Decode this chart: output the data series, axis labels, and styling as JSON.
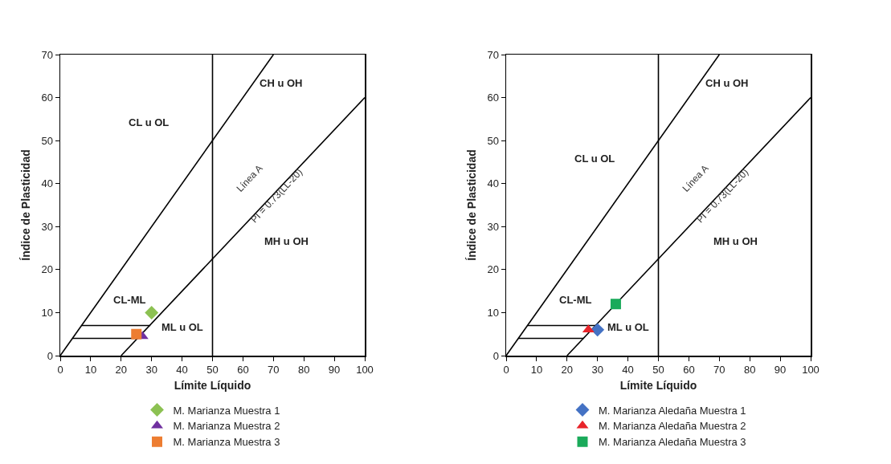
{
  "chart_data": [
    {
      "type": "scatter",
      "xlabel": "Límite Líquido",
      "ylabel": "Índice de Plasticidad",
      "xlim": [
        0,
        100
      ],
      "ylim": [
        0,
        70
      ],
      "xticks": [
        0,
        10,
        20,
        30,
        40,
        50,
        60,
        70,
        80,
        90,
        100
      ],
      "yticks": [
        0,
        10,
        20,
        30,
        40,
        50,
        60,
        70
      ],
      "grid": false,
      "legend": "bottom",
      "ref_lines": [
        {
          "axis": "x",
          "value": 50,
          "color": "#000000"
        }
      ],
      "annotations": [
        "CL u OL",
        "CH u OH",
        "MH u OH",
        "CL-ML",
        "ML u OL",
        "Línea A",
        "PI = 0.73(LL-20)"
      ],
      "series": [
        {
          "type": "line",
          "color": "#000000",
          "marker": "none",
          "x": [
            0,
            70
          ],
          "values": [
            0,
            70
          ]
        },
        {
          "type": "line",
          "color": "#000000",
          "marker": "none",
          "x": [
            20,
            100
          ],
          "values": [
            0,
            60
          ]
        },
        {
          "type": "line",
          "color": "#000000",
          "marker": "none",
          "x": [
            7,
            29.6
          ],
          "values": [
            7,
            7
          ]
        },
        {
          "type": "line",
          "color": "#000000",
          "marker": "none",
          "x": [
            4,
            25.5
          ],
          "values": [
            4,
            4
          ]
        },
        {
          "name": "M. Marianza Muestra 1",
          "color": "#8cc152",
          "marker": "diamond",
          "x": [
            30
          ],
          "values": [
            10
          ]
        },
        {
          "name": "M. Marianza Muestra 2",
          "color": "#7030a0",
          "marker": "triangle",
          "x": [
            27
          ],
          "values": [
            4.5
          ]
        },
        {
          "name": "M. Marianza Muestra 3",
          "color": "#ed7d31",
          "marker": "square",
          "x": [
            25
          ],
          "values": [
            5
          ]
        }
      ]
    },
    {
      "type": "scatter",
      "xlabel": "Límite Líquido",
      "ylabel": "Índice de Plasticidad",
      "xlim": [
        0,
        100
      ],
      "ylim": [
        0,
        70
      ],
      "xticks": [
        0,
        10,
        20,
        30,
        40,
        50,
        60,
        70,
        80,
        90,
        100
      ],
      "yticks": [
        0,
        10,
        20,
        30,
        40,
        50,
        60,
        70
      ],
      "grid": false,
      "legend": "bottom",
      "ref_lines": [
        {
          "axis": "x",
          "value": 50,
          "color": "#000000"
        }
      ],
      "annotations": [
        "CL u OL",
        "CH u OH",
        "MH u OH",
        "CL-ML",
        "ML u OL",
        "Línea A",
        "PI = 0.73(LL-20)"
      ],
      "series": [
        {
          "type": "line",
          "color": "#000000",
          "marker": "none",
          "x": [
            0,
            70
          ],
          "values": [
            0,
            70
          ]
        },
        {
          "type": "line",
          "color": "#000000",
          "marker": "none",
          "x": [
            20,
            100
          ],
          "values": [
            0,
            60
          ]
        },
        {
          "type": "line",
          "color": "#000000",
          "marker": "none",
          "x": [
            7,
            29.6
          ],
          "values": [
            7,
            7
          ]
        },
        {
          "type": "line",
          "color": "#000000",
          "marker": "none",
          "x": [
            4,
            25.5
          ],
          "values": [
            4,
            4
          ]
        },
        {
          "name": "M. Marianza Aledaña Muestra 1",
          "color": "#4472c4",
          "marker": "diamond",
          "x": [
            30
          ],
          "values": [
            6
          ]
        },
        {
          "name": "M. Marianza Aledaña Muestra 2",
          "color": "#e8242a",
          "marker": "triangle",
          "x": [
            27
          ],
          "values": [
            6
          ]
        },
        {
          "name": "M. Marianza Aledaña Muestra 3",
          "color": "#1aaa5a",
          "marker": "square",
          "x": [
            36
          ],
          "values": [
            12
          ]
        }
      ]
    }
  ]
}
